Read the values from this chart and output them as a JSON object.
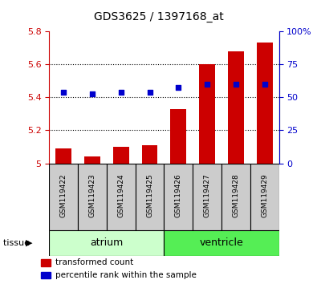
{
  "title": "GDS3625 / 1397168_at",
  "samples": [
    "GSM119422",
    "GSM119423",
    "GSM119424",
    "GSM119425",
    "GSM119426",
    "GSM119427",
    "GSM119428",
    "GSM119429"
  ],
  "bar_values": [
    5.09,
    5.04,
    5.1,
    5.11,
    5.33,
    5.6,
    5.68,
    5.73
  ],
  "bar_base": 5.0,
  "percentile_values": [
    5.43,
    5.42,
    5.43,
    5.43,
    5.46,
    5.48,
    5.48,
    5.48
  ],
  "bar_color": "#cc0000",
  "dot_color": "#0000cc",
  "ylim_left": [
    5.0,
    5.8
  ],
  "ylim_right": [
    0,
    100
  ],
  "yticks_left": [
    5.0,
    5.2,
    5.4,
    5.6,
    5.8
  ],
  "yticks_right": [
    0,
    25,
    50,
    75,
    100
  ],
  "ytick_labels_left": [
    "5",
    "5.2",
    "5.4",
    "5.6",
    "5.8"
  ],
  "ytick_labels_right": [
    "0",
    "25",
    "50",
    "75",
    "100%"
  ],
  "grid_values": [
    5.2,
    5.4,
    5.6
  ],
  "tissue_groups": [
    {
      "label": "atrium",
      "start": 0,
      "end": 4,
      "color": "#ccffcc"
    },
    {
      "label": "ventricle",
      "start": 4,
      "end": 8,
      "color": "#55ee55"
    }
  ],
  "tissue_label": "tissue",
  "legend_items": [
    {
      "color": "#cc0000",
      "label": "transformed count"
    },
    {
      "color": "#0000cc",
      "label": "percentile rank within the sample"
    }
  ],
  "background_color": "#ffffff",
  "sample_box_color": "#cccccc",
  "label_color_left": "#cc0000",
  "label_color_right": "#0000cc",
  "bar_width": 0.55
}
